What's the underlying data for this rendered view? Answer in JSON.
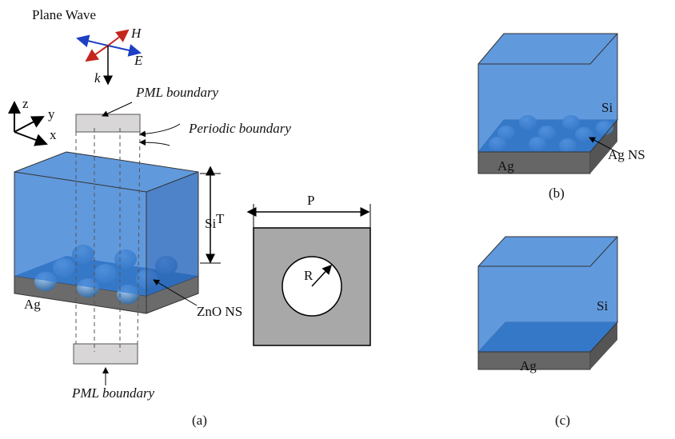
{
  "panel_a": {
    "plane_wave": "Plane Wave",
    "h_field": "H",
    "e_field": "E",
    "k_vector": "k",
    "axis_z": "z",
    "axis_y": "y",
    "axis_x": "x",
    "pml_top": "PML boundary",
    "periodic": "Periodic boundary",
    "si": "Si",
    "thickness": "T",
    "ag": "Ag",
    "zno": "ZnO NS",
    "pml_bottom": "PML boundary",
    "period": "P",
    "radius": "R",
    "caption": "(a)"
  },
  "panel_b": {
    "si": "Si",
    "ag": "Ag",
    "ag_ns": "Ag NS",
    "caption": "(b)"
  },
  "panel_c": {
    "si": "Si",
    "ag": "Ag",
    "caption": "(c)"
  }
}
